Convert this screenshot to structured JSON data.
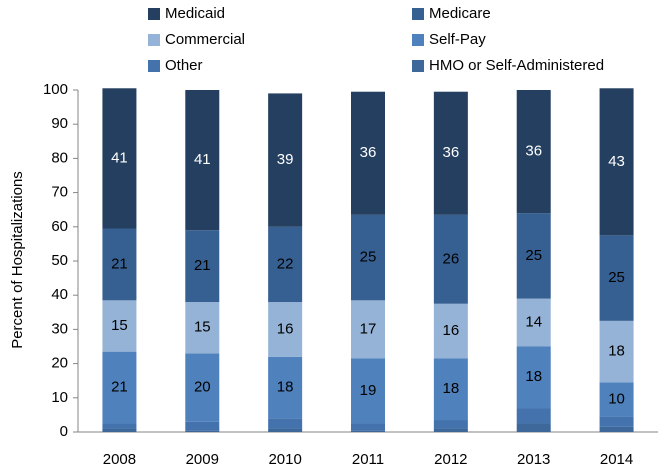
{
  "chart_data": {
    "type": "stacked-bar",
    "y_label": "Percent of Hospitalizations",
    "categories": [
      "2008",
      "2009",
      "2010",
      "2011",
      "2012",
      "2013",
      "2014"
    ],
    "series": [
      {
        "name": "Medicaid",
        "color": "#243f60",
        "data_labels": true,
        "values": [
          41,
          41,
          39,
          36,
          36,
          36,
          43
        ]
      },
      {
        "name": "Medicare",
        "color": "#376092",
        "data_labels": true,
        "values": [
          21,
          21,
          22,
          25,
          26,
          25,
          25
        ]
      },
      {
        "name": "Commercial",
        "color": "#95b3d7",
        "data_labels": true,
        "values": [
          15,
          15,
          16,
          17,
          16,
          14,
          18
        ]
      },
      {
        "name": "Self-Pay",
        "color": "#4f81bd",
        "data_labels": true,
        "values": [
          21,
          20,
          18,
          19,
          18,
          18,
          10
        ]
      },
      {
        "name": "Other",
        "color": "#4372ad",
        "data_labels": false,
        "values": [
          1.5,
          2.5,
          3,
          2,
          2.5,
          4.5,
          3
        ]
      },
      {
        "name": "HMO or Self-Administered",
        "color": "#3d6899",
        "data_labels": false,
        "values": [
          1,
          0.5,
          1,
          0.5,
          1,
          2.5,
          1.5
        ]
      }
    ],
    "ylim": [
      0,
      100
    ],
    "yticks": [
      0,
      10,
      20,
      30,
      40,
      50,
      60,
      70,
      80,
      90,
      100
    ],
    "grid": false
  }
}
